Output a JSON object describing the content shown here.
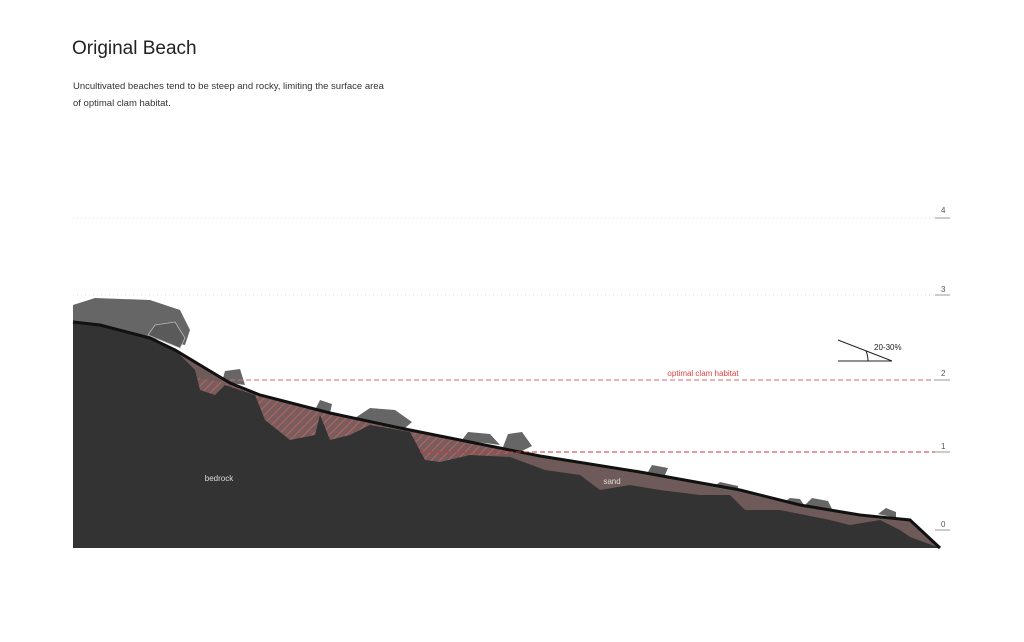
{
  "header": {
    "title": "Original Beach",
    "description": "Uncultivated beaches tend to be steep and rocky, limiting the surface area of optimal clam habitat."
  },
  "scale": {
    "ticks": [
      "4",
      "3",
      "2",
      "1",
      "0"
    ]
  },
  "labels": {
    "habitat": "optimal clam habitat",
    "slope": "20-30%",
    "bedrock": "bedrock",
    "sand": "sand"
  }
}
